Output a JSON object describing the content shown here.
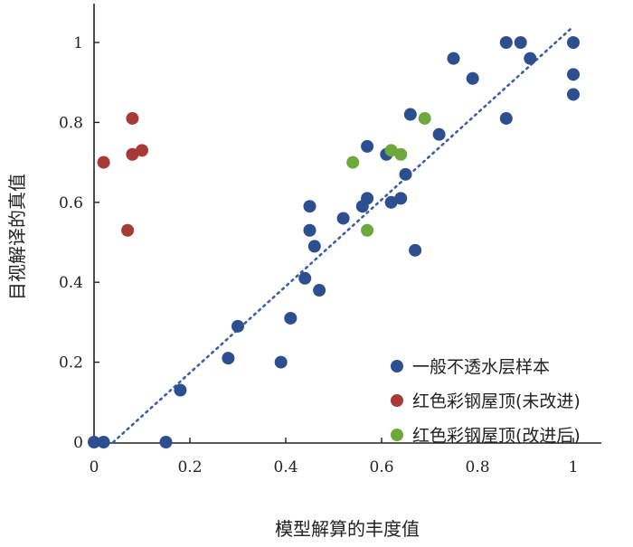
{
  "chart_data": {
    "type": "scatter",
    "xlabel": "模型解算的丰度值",
    "ylabel": "目视解译的真值",
    "xlim": [
      0,
      1.05
    ],
    "ylim": [
      0,
      1.05
    ],
    "x_ticks": [
      0,
      0.2,
      0.4,
      0.6,
      0.8,
      1
    ],
    "y_ticks": [
      0,
      0.2,
      0.4,
      0.6,
      0.8,
      1
    ],
    "x_tick_labels": [
      "0",
      "0.2",
      "0.4",
      "0.6",
      "0.8",
      "1"
    ],
    "y_tick_labels": [
      "0",
      "0.2",
      "0.4",
      "0.6",
      "0.8",
      "1"
    ],
    "grid": false,
    "legend_position": "bottom-right",
    "trendline": {
      "style": "dotted",
      "color": "#3a5fa8",
      "x": [
        0.04,
        1.0
      ],
      "y": [
        0.0,
        1.04
      ]
    },
    "series": [
      {
        "name": "一般不透水层样本",
        "color": "#2e4f8f",
        "points": [
          [
            0.0,
            0.0
          ],
          [
            0.02,
            0.0
          ],
          [
            0.15,
            0.0
          ],
          [
            0.18,
            0.13
          ],
          [
            0.28,
            0.21
          ],
          [
            0.3,
            0.29
          ],
          [
            0.39,
            0.2
          ],
          [
            0.41,
            0.31
          ],
          [
            0.44,
            0.41
          ],
          [
            0.45,
            0.59
          ],
          [
            0.45,
            0.53
          ],
          [
            0.46,
            0.49
          ],
          [
            0.47,
            0.38
          ],
          [
            0.52,
            0.56
          ],
          [
            0.56,
            0.59
          ],
          [
            0.57,
            0.61
          ],
          [
            0.57,
            0.74
          ],
          [
            0.61,
            0.72
          ],
          [
            0.62,
            0.6
          ],
          [
            0.64,
            0.61
          ],
          [
            0.65,
            0.67
          ],
          [
            0.66,
            0.82
          ],
          [
            0.67,
            0.48
          ],
          [
            0.72,
            0.77
          ],
          [
            0.75,
            0.96
          ],
          [
            0.79,
            0.91
          ],
          [
            0.86,
            0.81
          ],
          [
            0.86,
            1.0
          ],
          [
            0.89,
            1.0
          ],
          [
            0.91,
            0.96
          ],
          [
            1.0,
            1.0
          ],
          [
            1.0,
            0.92
          ],
          [
            1.0,
            0.87
          ]
        ]
      },
      {
        "name": "红色彩钢屋顶(未改进)",
        "color": "#a83a36",
        "points": [
          [
            0.02,
            0.7
          ],
          [
            0.07,
            0.53
          ],
          [
            0.08,
            0.72
          ],
          [
            0.08,
            0.81
          ],
          [
            0.1,
            0.73
          ]
        ]
      },
      {
        "name": "红色彩钢屋顶(改进后)",
        "color": "#6ea83c",
        "points": [
          [
            0.54,
            0.7
          ],
          [
            0.57,
            0.53
          ],
          [
            0.62,
            0.73
          ],
          [
            0.64,
            0.72
          ],
          [
            0.69,
            0.81
          ]
        ]
      }
    ]
  }
}
